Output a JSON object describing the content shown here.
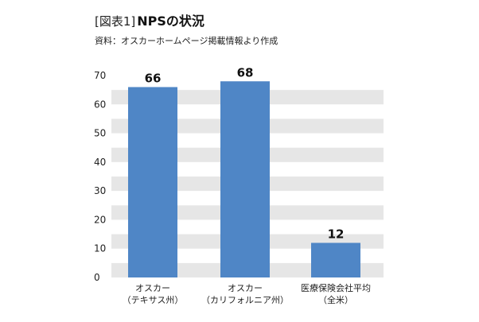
{
  "figure_label": "[図表1]",
  "title": "NPSの状況",
  "source": "資料：オスカーホームページ掲載情報より作成",
  "colors": {
    "bar": "#4f86c6",
    "band": "#e6e6e6",
    "text": "#222222"
  },
  "chart_data": {
    "type": "bar",
    "title": "NPSの状況",
    "xlabel": "",
    "ylabel": "",
    "ylim": [
      0,
      70
    ],
    "yticks": [
      0,
      10,
      20,
      30,
      40,
      50,
      60,
      70
    ],
    "grid": "alternating horizontal bands",
    "legend": "none",
    "categories": [
      [
        "オスカー",
        "（テキサス州）"
      ],
      [
        "オスカー",
        "（カリフォルニア州）"
      ],
      [
        "医療保険会社平均",
        "（全米）"
      ]
    ],
    "values": [
      66,
      68,
      12
    ],
    "data_labels": [
      "66",
      "68",
      "12"
    ]
  }
}
